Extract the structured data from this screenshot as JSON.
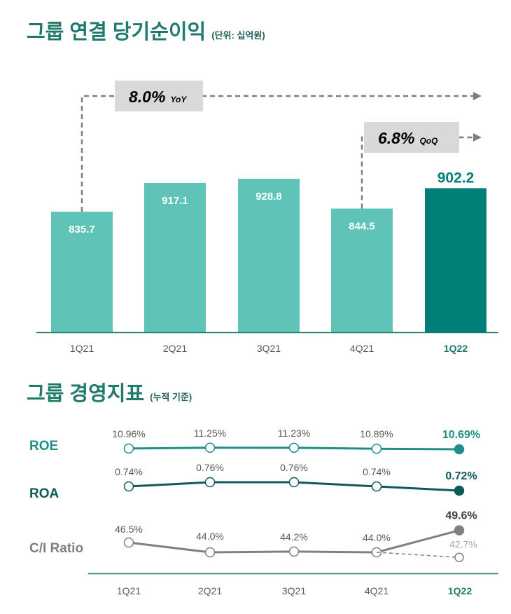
{
  "profit_section": {
    "title": "그룹 연결 당기순이익",
    "unit": "(단위: 십억원)"
  },
  "metrics_section": {
    "title": "그룹 경영지표",
    "subtitle": "(누적 기준)"
  },
  "colors": {
    "teal_light": "#5fc4b7",
    "teal_dark": "#007e78",
    "roe_line": "#1f8f87",
    "roa_line": "#0d5a57",
    "ci_line": "#808080",
    "axis": "#1f7a6c",
    "callout_box": "#d9d9d9",
    "arrow_dash": "#7f7f7f"
  },
  "chart_data": [
    {
      "type": "bar",
      "categories": [
        "1Q21",
        "2Q21",
        "3Q21",
        "4Q21",
        "1Q22"
      ],
      "values": [
        835.7,
        917.1,
        928.8,
        844.5,
        902.2
      ],
      "value_labels": [
        "835.7",
        "917.1",
        "928.8",
        "844.5",
        "902.2"
      ],
      "highlight_index": 4,
      "annotations": [
        {
          "value": "8.0%",
          "suffix": "YoY",
          "from": "1Q21",
          "to": "1Q22"
        },
        {
          "value": "6.8%",
          "suffix": "QoQ",
          "from": "4Q21",
          "to": "1Q22"
        }
      ]
    },
    {
      "type": "line",
      "x": [
        "1Q21",
        "2Q21",
        "3Q21",
        "4Q21",
        "1Q22"
      ],
      "series": [
        {
          "name": "ROE",
          "values": [
            10.96,
            11.25,
            11.23,
            10.89,
            10.69
          ],
          "labels": [
            "10.96%",
            "11.25%",
            "11.23%",
            "10.89%",
            "10.69%"
          ]
        },
        {
          "name": "ROA",
          "values": [
            0.74,
            0.76,
            0.76,
            0.74,
            0.72
          ],
          "labels": [
            "0.74%",
            "0.76%",
            "0.76%",
            "0.74%",
            "0.72%"
          ]
        },
        {
          "name": "C/I Ratio",
          "values": [
            46.5,
            44.0,
            44.2,
            44.0,
            49.6
          ],
          "labels": [
            "46.5%",
            "44.0%",
            "44.2%",
            "44.0%",
            "49.6%"
          ],
          "alt_last": {
            "value": 42.7,
            "label": "42.7%"
          }
        }
      ]
    }
  ]
}
